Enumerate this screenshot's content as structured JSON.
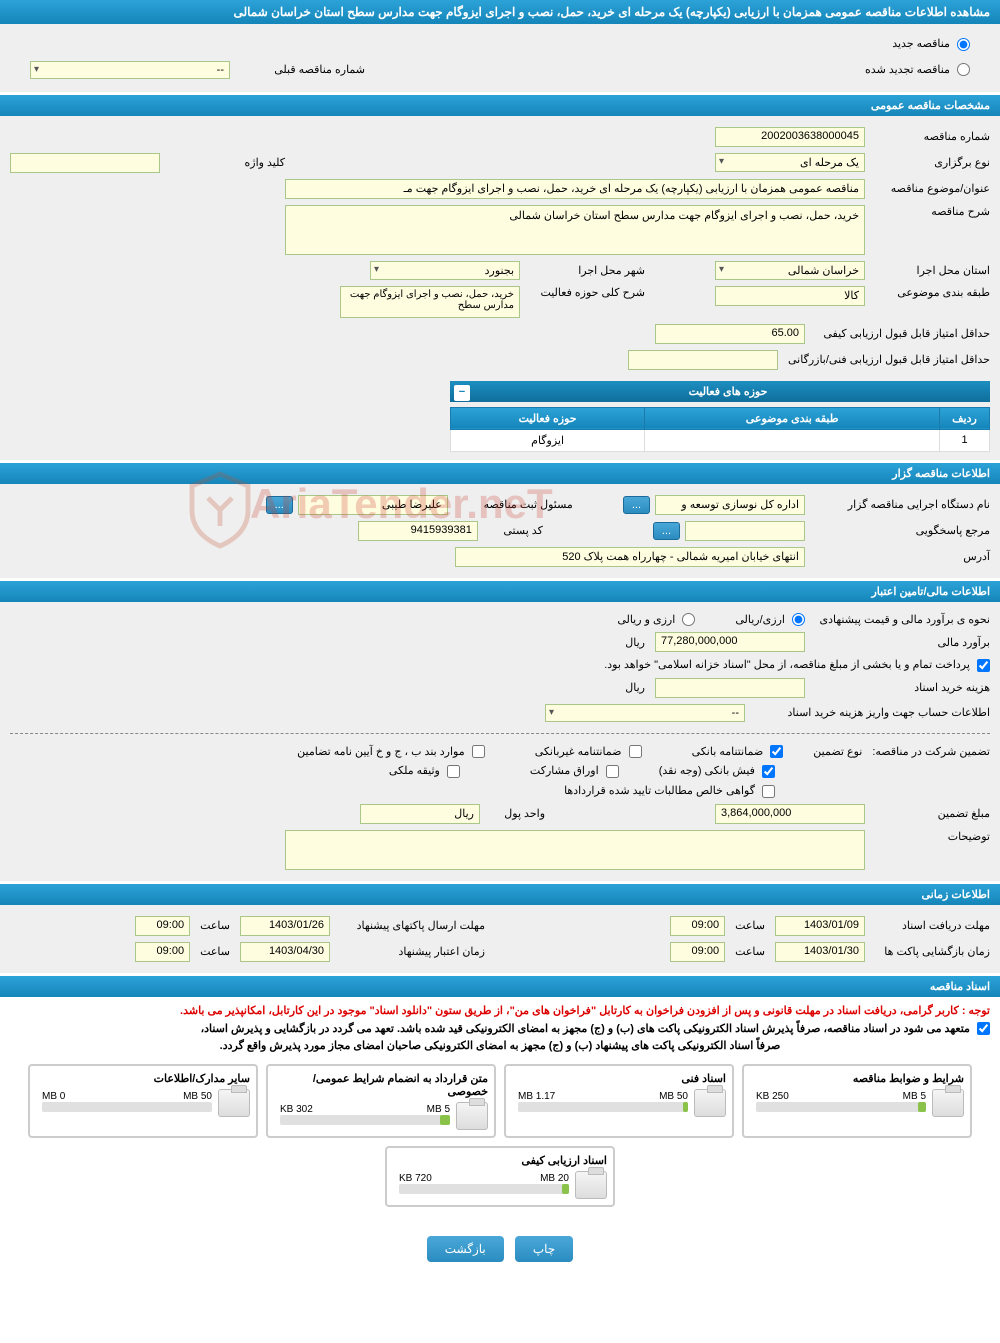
{
  "header": {
    "title": "مشاهده اطلاعات مناقصه عمومی همزمان با ارزیابی (یکپارچه) یک مرحله ای خرید، حمل، نصب و اجرای ایزوگام جهت مدارس سطح استان خراسان شمالی"
  },
  "tender_type": {
    "new_label": "مناقصه جدید",
    "renewed_label": "مناقصه تجدید شده",
    "prev_number_label": "شماره مناقصه قبلی",
    "prev_number": "--"
  },
  "general": {
    "section_title": "مشخصات مناقصه عمومی",
    "number_label": "شماره مناقصه",
    "number": "2002003638000045",
    "holding_type_label": "نوع برگزاری",
    "holding_type": "یک مرحله ای",
    "keyword_label": "کلید واژه",
    "keyword": "",
    "title_label": "عنوان/موضوع مناقصه",
    "title_value": "مناقصه عمومی همزمان با ارزیابی (یکپارچه) یک مرحله ای خرید، حمل، نصب و اجرای ایزوگام جهت مـ",
    "desc_label": "شرح مناقصه",
    "desc_value": "خرید، حمل، نصب و اجرای ایزوگام جهت مدارس سطح استان خراسان شمالی",
    "province_label": "استان محل اجرا",
    "province": "خراسان شمالی",
    "city_label": "شهر محل اجرا",
    "city": "بجنورد",
    "category_label": "طبقه بندی موضوعی",
    "category": "کالا",
    "activity_label": "شرح کلی حوزه فعالیت",
    "activity": "خرید، حمل، نصب و اجرای ایزوگام جهت مدارس سطح",
    "quality_score_label": "حداقل امتیاز قابل قبول ارزیابی کیفی",
    "quality_score": "65.00",
    "tech_score_label": "حداقل امتیاز قابل قبول ارزیابی فنی/بازرگانی",
    "tech_score": ""
  },
  "activity_table": {
    "title": "حوزه های فعالیت",
    "col_row": "ردیف",
    "col_category": "طبقه بندی موضوعی",
    "col_activity": "حوزه فعالیت",
    "rows": [
      {
        "n": "1",
        "category": "",
        "activity": "ایزوگام"
      }
    ]
  },
  "organizer": {
    "section_title": "اطلاعات مناقصه گزار",
    "org_label": "نام دستگاه اجرایی مناقصه گزار",
    "org_value": "اداره کل نوسازی  توسعه و",
    "responsible_label": "مسئول ثبت مناقصه",
    "responsible_value": "علیرضا طیبی",
    "responder_label": "مرجع پاسخگویی",
    "responder_value": "",
    "postal_label": "کد پستی",
    "postal_value": "9415939381",
    "address_label": "آدرس",
    "address_value": "انتهای خیابان امیریه شمالی - چهارراه همت پلاک 520",
    "btn_dots": "..."
  },
  "financial": {
    "section_title": "اطلاعات مالی/تامین اعتبار",
    "est_method_label": "نحوه ی برآورد مالی و قیمت پیشنهادی",
    "opt_currency": "ارزی/ریالی",
    "opt_both": "ارزی و ریالی",
    "est_label": "برآورد مالی",
    "est_value": "77,280,000,000",
    "unit": "ریال",
    "treasury_note": "پرداخت تمام و یا بخشی از مبلغ مناقصه، از محل \"اسناد خزانه اسلامی\" خواهد بود.",
    "doc_cost_label": "هزینه خرید اسناد",
    "doc_cost_value": "",
    "account_label": "اطلاعات حساب جهت واریز هزینه خرید اسناد",
    "account_value": "--"
  },
  "guarantee": {
    "participate_label": "تضمین شرکت در مناقصه:",
    "type_label": "نوع تضمین",
    "opt_bank": "ضمانتنامه بانکی",
    "opt_nonbank": "ضمانتنامه غیربانکی",
    "opt_bylaw": "موارد بند ب ، ج و خ آیین نامه تضامین",
    "opt_cash": "فیش بانکی (وجه نقد)",
    "opt_securities": "اوراق مشارکت",
    "opt_property": "وثیقه ملکی",
    "opt_receivables": "گواهی خالص مطالبات تایید شده قراردادها",
    "amount_label": "مبلغ تضمین",
    "amount_value": "3,864,000,000",
    "currency_label": "واحد پول",
    "currency_value": "ریال",
    "notes_label": "توضیحات",
    "notes_value": ""
  },
  "timing": {
    "section_title": "اطلاعات زمانی",
    "receive_label": "مهلت دریافت اسناد",
    "receive_date": "1403/01/09",
    "receive_time": "09:00",
    "open_label": "زمان بازگشایی پاکت ها",
    "open_date": "1403/01/30",
    "open_time": "09:00",
    "send_label": "مهلت ارسال پاکتهای پیشنهاد",
    "send_date": "1403/01/26",
    "send_time": "09:00",
    "validity_label": "زمان اعتبار پیشنهاد",
    "validity_date": "1403/04/30",
    "validity_time": "09:00",
    "time_word": "ساعت"
  },
  "docs": {
    "section_title": "اسناد مناقصه",
    "note_red": "توجه : کاربر گرامی، دریافت اسناد در مهلت قانونی و پس از افزودن فراخوان به کارتابل \"فراخوان های من\"، از طریق ستون \"دانلود اسناد\" موجود در این کارتابل، امکانپذیر می باشد.",
    "note_black1": "متعهد می شود در اسناد مناقصه، صرفاً پذیرش اسناد الکترونیکی پاکت های (ب) و (ج) مجهز به امضای الکترونیکی قید شده باشد. تعهد می گردد در بازگشایی و پذیرش اسناد،",
    "note_black2": "صرفاً اسناد الکترونیکی پاکت های پیشنهاد (ب) و (ج) مجهز به امضای الکترونیکی صاحبان امضای مجاز مورد پذیرش واقع گردد.",
    "items": [
      {
        "title": "شرایط و ضوابط مناقصه",
        "limit": "5 MB",
        "size": "250 KB",
        "fill_pct": 5
      },
      {
        "title": "اسناد فنی",
        "limit": "50 MB",
        "size": "1.17 MB",
        "fill_pct": 3
      },
      {
        "title": "متن قرارداد به انضمام شرایط عمومی/خصوصی",
        "limit": "5 MB",
        "size": "302 KB",
        "fill_pct": 6
      },
      {
        "title": "سایر مدارک/اطلاعات",
        "limit": "50 MB",
        "size": "0 MB",
        "fill_pct": 0
      },
      {
        "title": "اسناد ارزیابی کیفی",
        "limit": "20 MB",
        "size": "720 KB",
        "fill_pct": 4
      }
    ]
  },
  "buttons": {
    "print": "چاپ",
    "back": "بازگشت"
  },
  "watermark": "AriaTender.neT",
  "colors": {
    "header_grad_top": "#2ca3d8",
    "header_grad_bottom": "#1585b9",
    "field_bg": "#fffde0",
    "field_border": "#a8c789",
    "progress_fill": "#8bc34a"
  }
}
